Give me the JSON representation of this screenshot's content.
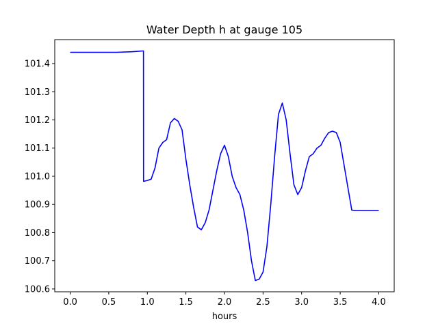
{
  "chart_data": {
    "type": "line",
    "title": "Water Depth h at gauge 105",
    "xlabel": "hours",
    "ylabel": "",
    "xlim": [
      -0.2,
      4.2
    ],
    "ylim": [
      100.59,
      101.485
    ],
    "xticks": [
      0.0,
      0.5,
      1.0,
      1.5,
      2.0,
      2.5,
      3.0,
      3.5,
      4.0
    ],
    "xtick_labels": [
      "0.0",
      "0.5",
      "1.0",
      "1.5",
      "2.0",
      "2.5",
      "3.0",
      "3.5",
      "4.0"
    ],
    "yticks": [
      100.6,
      100.7,
      100.8,
      100.9,
      101.0,
      101.1,
      101.2,
      101.3,
      101.4
    ],
    "ytick_labels": [
      "100.6",
      "100.7",
      "100.8",
      "100.9",
      "101.0",
      "101.1",
      "101.2",
      "101.3",
      "101.4"
    ],
    "grid": false,
    "line_color": "#0000ff",
    "series": [
      {
        "x": [
          0.0,
          0.3,
          0.6,
          0.8,
          0.95,
          0.951,
          1.0,
          1.05,
          1.1,
          1.15,
          1.2,
          1.25,
          1.3,
          1.35,
          1.4,
          1.45,
          1.5,
          1.55,
          1.6,
          1.65,
          1.7,
          1.75,
          1.8,
          1.85,
          1.9,
          1.95,
          2.0,
          2.05,
          2.1,
          2.15,
          2.2,
          2.25,
          2.3,
          2.35,
          2.4,
          2.45,
          2.5,
          2.55,
          2.6,
          2.65,
          2.7,
          2.75,
          2.8,
          2.85,
          2.9,
          2.95,
          3.0,
          3.05,
          3.1,
          3.15,
          3.2,
          3.25,
          3.3,
          3.35,
          3.4,
          3.45,
          3.5,
          3.55,
          3.6,
          3.65,
          3.7,
          3.75,
          3.8,
          3.85,
          3.9,
          3.95,
          4.0
        ],
        "values": [
          101.44,
          101.44,
          101.44,
          101.442,
          101.445,
          100.982,
          100.985,
          100.99,
          101.03,
          101.1,
          101.12,
          101.13,
          101.19,
          101.205,
          101.195,
          101.165,
          101.06,
          100.97,
          100.89,
          100.82,
          100.81,
          100.835,
          100.88,
          100.95,
          101.02,
          101.08,
          101.11,
          101.07,
          101.0,
          100.96,
          100.935,
          100.88,
          100.8,
          100.7,
          100.63,
          100.635,
          100.66,
          100.75,
          100.9,
          101.07,
          101.22,
          101.26,
          101.2,
          101.08,
          100.97,
          100.935,
          100.96,
          101.02,
          101.07,
          101.08,
          101.1,
          101.11,
          101.135,
          101.155,
          101.16,
          101.155,
          101.12,
          101.04,
          100.96,
          100.88,
          100.878,
          100.878,
          100.878,
          100.878,
          100.878,
          100.878,
          100.878
        ]
      }
    ]
  }
}
